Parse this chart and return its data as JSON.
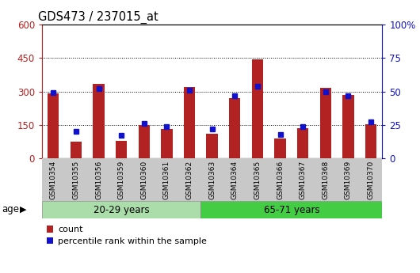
{
  "title": "GDS473 / 237015_at",
  "samples": [
    "GSM10354",
    "GSM10355",
    "GSM10356",
    "GSM10359",
    "GSM10360",
    "GSM10361",
    "GSM10362",
    "GSM10363",
    "GSM10364",
    "GSM10365",
    "GSM10366",
    "GSM10367",
    "GSM10368",
    "GSM10369",
    "GSM10370"
  ],
  "counts": [
    290,
    75,
    335,
    80,
    148,
    133,
    320,
    110,
    270,
    445,
    90,
    135,
    315,
    285,
    153
  ],
  "percentiles": [
    49,
    20,
    52,
    17,
    26,
    24,
    51,
    22,
    47,
    54,
    18,
    24,
    50,
    47,
    27
  ],
  "group1_label": "20-29 years",
  "group2_label": "65-71 years",
  "group1_count": 7,
  "group2_count": 8,
  "bar_color": "#B22222",
  "marker_color": "#1111CC",
  "group1_bg": "#AADDAA",
  "group2_bg": "#44CC44",
  "tick_bg": "#C8C8C8",
  "left_ylim": [
    0,
    600
  ],
  "right_ylim": [
    0,
    100
  ],
  "left_yticks": [
    0,
    150,
    300,
    450,
    600
  ],
  "right_yticks": [
    0,
    25,
    50,
    75,
    100
  ],
  "left_ytick_labels": [
    "0",
    "150",
    "300",
    "450",
    "600"
  ],
  "right_ytick_labels": [
    "0",
    "25",
    "50",
    "75",
    "100%"
  ],
  "right_ytick_labels_top": "100%",
  "legend_count": "count",
  "legend_pct": "percentile rank within the sample",
  "age_label": "age"
}
